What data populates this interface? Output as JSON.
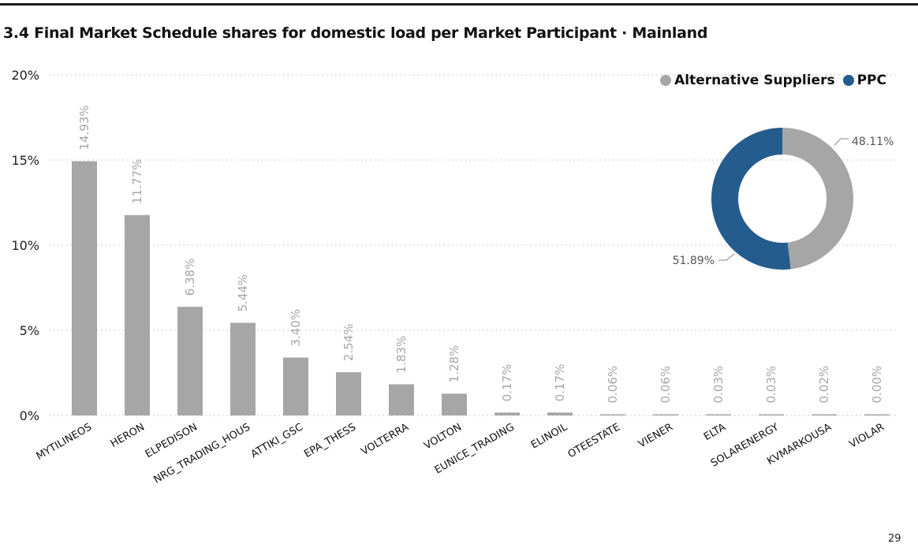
{
  "page": {
    "title": "3.4 Final Market Schedule shares for  domestic load per Market Participant · Mainland",
    "page_number": "29"
  },
  "colors": {
    "bar": "#a6a6a6",
    "alternative": "#a6a6a6",
    "ppc": "#255c8e",
    "gridline": "#c8c8c8",
    "label": "#a6a6a6"
  },
  "chart_data": [
    {
      "type": "bar",
      "categories": [
        "MYTILINEOS",
        "HERON",
        "ELPEDISON",
        "NRG_TRADING_HOUS",
        "ATTIKI_GSC",
        "EPA_THESS",
        "VOLTERRA",
        "VOLTON",
        "EUNICE_TRADING",
        "ELINOIL",
        "OTEESTATE",
        "VIENER",
        "ELTA",
        "SOLARENERGY",
        "KVMARKOUSA",
        "VIOLAR"
      ],
      "values": [
        14.93,
        11.77,
        6.38,
        5.44,
        3.4,
        2.54,
        1.83,
        1.28,
        0.17,
        0.17,
        0.06,
        0.06,
        0.03,
        0.03,
        0.02,
        0.0
      ],
      "data_labels": [
        "14.93%",
        "11.77%",
        "6.38%",
        "5.44%",
        "3.40%",
        "2.54%",
        "1.83%",
        "1.28%",
        "0.17%",
        "0.17%",
        "0.06%",
        "0.06%",
        "0.03%",
        "0.03%",
        "0.02%",
        "0.00%"
      ],
      "ylim": [
        0,
        20
      ],
      "yticks": [
        0,
        5,
        10,
        15,
        20
      ],
      "ytick_labels": [
        "0%",
        "5%",
        "10%",
        "15%",
        "20%"
      ],
      "grid": "dotted horizontal"
    },
    {
      "type": "pie",
      "style": "donut",
      "labels": [
        "Alternative Suppliers",
        "PPC"
      ],
      "values": [
        48.11,
        51.89
      ],
      "data_labels": [
        "48.11%",
        "51.89%"
      ],
      "legend": "top-right"
    }
  ]
}
